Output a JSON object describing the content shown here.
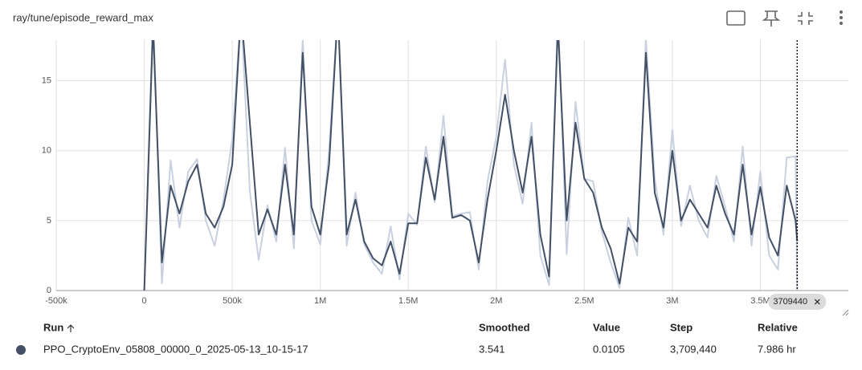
{
  "header": {
    "title": "ray/tune/episode_reward_max"
  },
  "chart_data": {
    "type": "line",
    "x": [
      0,
      50000,
      100000,
      150000,
      200000,
      250000,
      300000,
      350000,
      400000,
      450000,
      500000,
      550000,
      600000,
      650000,
      700000,
      750000,
      800000,
      850000,
      900000,
      950000,
      1000000,
      1050000,
      1100000,
      1150000,
      1200000,
      1250000,
      1300000,
      1350000,
      1400000,
      1450000,
      1500000,
      1550000,
      1600000,
      1650000,
      1700000,
      1750000,
      1800000,
      1850000,
      1900000,
      1950000,
      2000000,
      2050000,
      2100000,
      2150000,
      2200000,
      2250000,
      2300000,
      2350000,
      2400000,
      2450000,
      2500000,
      2550000,
      2600000,
      2650000,
      2700000,
      2750000,
      2800000,
      2850000,
      2900000,
      2950000,
      3000000,
      3050000,
      3100000,
      3150000,
      3200000,
      3250000,
      3300000,
      3350000,
      3400000,
      3450000,
      3500000,
      3550000,
      3600000,
      3650000,
      3700000,
      3709440
    ],
    "series": [
      {
        "name": "raw",
        "color": "#c9d1e0",
        "values": [
          0,
          20,
          0.5,
          9.3,
          4.5,
          8.5,
          9.4,
          5,
          3.2,
          6.5,
          10.8,
          20,
          7.1,
          2.2,
          6.1,
          3.5,
          10.2,
          3,
          18,
          5,
          3.3,
          10,
          20,
          3.2,
          7,
          3.3,
          2,
          1.2,
          4.6,
          0.8,
          5.5,
          4.7,
          10.3,
          6.3,
          12.5,
          5.3,
          5.5,
          5.6,
          1.5,
          7.8,
          11,
          16.5,
          9,
          6.2,
          12,
          2.5,
          0.4,
          20,
          2.6,
          13.5,
          8,
          7.8,
          4.2,
          2,
          0.2,
          5.2,
          2.5,
          18,
          8,
          4,
          11.5,
          4.6,
          7.5,
          5,
          3.8,
          8.2,
          6,
          3.5,
          10.3,
          3.2,
          8.5,
          2.5,
          1.5,
          9.5,
          9.6,
          0.0105
        ]
      },
      {
        "name": "PPO_CryptoEnv_05808_00000_0_2025-05-13_10-15-17",
        "color": "#425066",
        "values": [
          0,
          19,
          2,
          7.5,
          5.5,
          7.8,
          9,
          5.5,
          4.5,
          6,
          9,
          20,
          12,
          4,
          5.8,
          4,
          9,
          4,
          17,
          6,
          4,
          9,
          20,
          4,
          6.5,
          3.5,
          2.3,
          1.8,
          3.5,
          1.2,
          4.8,
          4.8,
          9.5,
          6.5,
          11,
          5.2,
          5.4,
          5,
          2,
          6.5,
          10,
          14,
          10,
          7,
          11,
          4,
          1,
          19,
          5,
          12,
          8,
          7,
          4.5,
          3,
          0.5,
          4.5,
          3.5,
          17,
          7,
          4.5,
          10,
          5,
          6.5,
          5.5,
          4.5,
          7.5,
          5.5,
          4,
          9,
          4,
          7.4,
          3.8,
          2.5,
          7.5,
          5,
          3.541
        ]
      }
    ],
    "xlim": [
      -500000,
      4000000
    ],
    "ylim": [
      0,
      17.9
    ],
    "xticks": [
      {
        "value": -500000,
        "label": "-500k"
      },
      0,
      {
        "value": 500000,
        "label": "500k"
      },
      {
        "value": 1000000,
        "label": "1M"
      },
      {
        "value": 1500000,
        "label": "1.5M"
      },
      {
        "value": 2000000,
        "label": "2M"
      },
      {
        "value": 2500000,
        "label": "2.5M"
      },
      {
        "value": 3000000,
        "label": "3M"
      },
      {
        "value": 3500000,
        "label": "3.5M"
      }
    ],
    "yticks": [
      0,
      5,
      10,
      15
    ],
    "grid": true,
    "cursor_x": 3709440
  },
  "table": {
    "headers": [
      "Run",
      "Smoothed",
      "Value",
      "Step",
      "Relative"
    ],
    "rows": [
      [
        "PPO_CryptoEnv_05808_00000_0_2025-05-13_10-15-17",
        "3.541",
        "0.0105",
        "3,709,440",
        "7.986 hr"
      ]
    ]
  }
}
